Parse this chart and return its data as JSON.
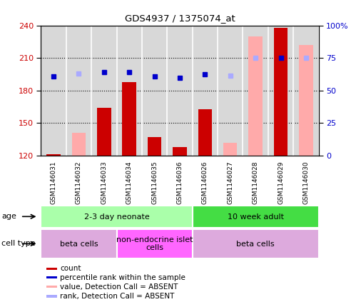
{
  "title": "GDS4937 / 1375074_at",
  "samples": [
    "GSM1146031",
    "GSM1146032",
    "GSM1146033",
    "GSM1146034",
    "GSM1146035",
    "GSM1146036",
    "GSM1146026",
    "GSM1146027",
    "GSM1146028",
    "GSM1146029",
    "GSM1146030"
  ],
  "count_values": [
    121,
    null,
    164,
    188,
    137,
    128,
    163,
    null,
    null,
    238,
    null
  ],
  "count_absent_values": [
    null,
    141,
    null,
    null,
    null,
    null,
    null,
    132,
    230,
    null,
    222
  ],
  "rank_values": [
    193,
    null,
    197,
    197,
    193,
    192,
    195,
    null,
    null,
    210,
    null
  ],
  "rank_absent_values": [
    null,
    196,
    null,
    null,
    null,
    null,
    null,
    194,
    210,
    null,
    210
  ],
  "ylim_left": [
    120,
    240
  ],
  "ylim_right": [
    0,
    100
  ],
  "yticks_left": [
    120,
    150,
    180,
    210,
    240
  ],
  "yticks_right": [
    0,
    25,
    50,
    75,
    100
  ],
  "ytick_labels_right": [
    "0",
    "25",
    "50",
    "75",
    "100%"
  ],
  "age_groups": [
    {
      "label": "2-3 day neonate",
      "start": 0,
      "end": 6,
      "color": "#aaffaa"
    },
    {
      "label": "10 week adult",
      "start": 6,
      "end": 11,
      "color": "#44dd44"
    }
  ],
  "cell_type_groups": [
    {
      "label": "beta cells",
      "start": 0,
      "end": 3,
      "color": "#ddaadd"
    },
    {
      "label": "non-endocrine islet\ncells",
      "start": 3,
      "end": 6,
      "color": "#ff66ff"
    },
    {
      "label": "beta cells",
      "start": 6,
      "end": 11,
      "color": "#ddaadd"
    }
  ],
  "bar_color_dark_red": "#cc0000",
  "bar_color_pink": "#ffaaaa",
  "dot_color_dark_blue": "#0000cc",
  "dot_color_light_blue": "#aaaaff",
  "legend_items": [
    {
      "label": "count",
      "color": "#cc0000"
    },
    {
      "label": "percentile rank within the sample",
      "color": "#0000cc"
    },
    {
      "label": "value, Detection Call = ABSENT",
      "color": "#ffaaaa"
    },
    {
      "label": "rank, Detection Call = ABSENT",
      "color": "#aaaaff"
    }
  ],
  "age_label": "age",
  "cell_type_label": "cell type",
  "left_axis_color": "#cc0000",
  "right_axis_color": "#0000cc",
  "plot_bg_color": "#d8d8d8",
  "white": "#ffffff"
}
